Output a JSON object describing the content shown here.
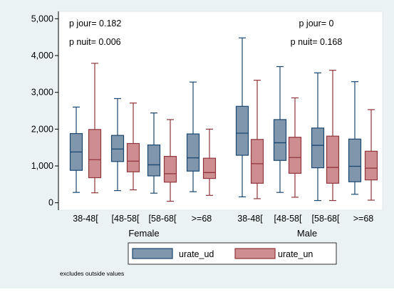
{
  "chart_data": {
    "type": "box",
    "ylim": [
      -200,
      5200
    ],
    "yticks": [
      0,
      1000,
      2000,
      3000,
      4000,
      5000
    ],
    "ytick_labels": [
      "0",
      "1,000",
      "2,000",
      "3,000",
      "4,000",
      "5,000"
    ],
    "groups": [
      {
        "label": "Female",
        "annotations": [
          "p jour= 0.182",
          "p nuit= 0.006"
        ],
        "categories": [
          "38-48[",
          "[48-58[",
          "[58-68[",
          ">=68"
        ],
        "boxes": [
          {
            "series": "urate_ud",
            "category": "38-48[",
            "min": 280,
            "q1": 880,
            "median": 1380,
            "q3": 1880,
            "max": 2600
          },
          {
            "series": "urate_un",
            "category": "38-48[",
            "min": 270,
            "q1": 680,
            "median": 1170,
            "q3": 1990,
            "max": 3790
          },
          {
            "series": "urate_ud",
            "category": "[48-58[",
            "min": 330,
            "q1": 1120,
            "median": 1460,
            "q3": 1830,
            "max": 2830
          },
          {
            "series": "urate_un",
            "category": "[48-58[",
            "min": 350,
            "q1": 840,
            "median": 1130,
            "q3": 1610,
            "max": 2710
          },
          {
            "series": "urate_ud",
            "category": "[58-68[",
            "min": 260,
            "q1": 730,
            "median": 1030,
            "q3": 1570,
            "max": 2440
          },
          {
            "series": "urate_un",
            "category": "[58-68[",
            "min": 40,
            "q1": 560,
            "median": 790,
            "q3": 1260,
            "max": 2260
          },
          {
            "series": "urate_ud",
            "category": ">=68",
            "min": 300,
            "q1": 860,
            "median": 1220,
            "q3": 1870,
            "max": 3280
          },
          {
            "series": "urate_un",
            "category": ">=68",
            "min": 200,
            "q1": 660,
            "median": 820,
            "q3": 1210,
            "max": 2000
          }
        ]
      },
      {
        "label": "Male",
        "annotations": [
          "p jour= 0",
          "p nuit= 0.168"
        ],
        "categories": [
          "38-48[",
          "[48-58[",
          "[58-68[",
          ">=68"
        ],
        "boxes": [
          {
            "series": "urate_ud",
            "category": "38-48[",
            "min": 160,
            "q1": 1290,
            "median": 1890,
            "q3": 2620,
            "max": 4480
          },
          {
            "series": "urate_un",
            "category": "38-48[",
            "min": 110,
            "q1": 530,
            "median": 1060,
            "q3": 1720,
            "max": 3330
          },
          {
            "series": "urate_ud",
            "category": "[48-58[",
            "min": 280,
            "q1": 1150,
            "median": 1630,
            "q3": 2260,
            "max": 3700
          },
          {
            "series": "urate_un",
            "category": "[48-58[",
            "min": 150,
            "q1": 800,
            "median": 1230,
            "q3": 1780,
            "max": 2850
          },
          {
            "series": "urate_ud",
            "category": "[58-68[",
            "min": 60,
            "q1": 950,
            "median": 1560,
            "q3": 2030,
            "max": 3530
          },
          {
            "series": "urate_un",
            "category": "[58-68[",
            "min": 60,
            "q1": 530,
            "median": 960,
            "q3": 1810,
            "max": 3600
          },
          {
            "series": "urate_ud",
            "category": ">=68",
            "min": 230,
            "q1": 570,
            "median": 990,
            "q3": 1730,
            "max": 3290
          },
          {
            "series": "urate_un",
            "category": ">=68",
            "min": 70,
            "q1": 620,
            "median": 940,
            "q3": 1400,
            "max": 2530
          }
        ]
      }
    ],
    "series": [
      {
        "name": "urate_ud",
        "fill": "#7f96ad",
        "stroke": "#1a476f"
      },
      {
        "name": "urate_un",
        "fill": "#cd8d91",
        "stroke": "#90353b"
      }
    ],
    "legend_position": "bottom",
    "note": "excludes outside values"
  },
  "colors": {
    "outer_background": "#eaf2f3",
    "plot_background": "#ffffff"
  }
}
